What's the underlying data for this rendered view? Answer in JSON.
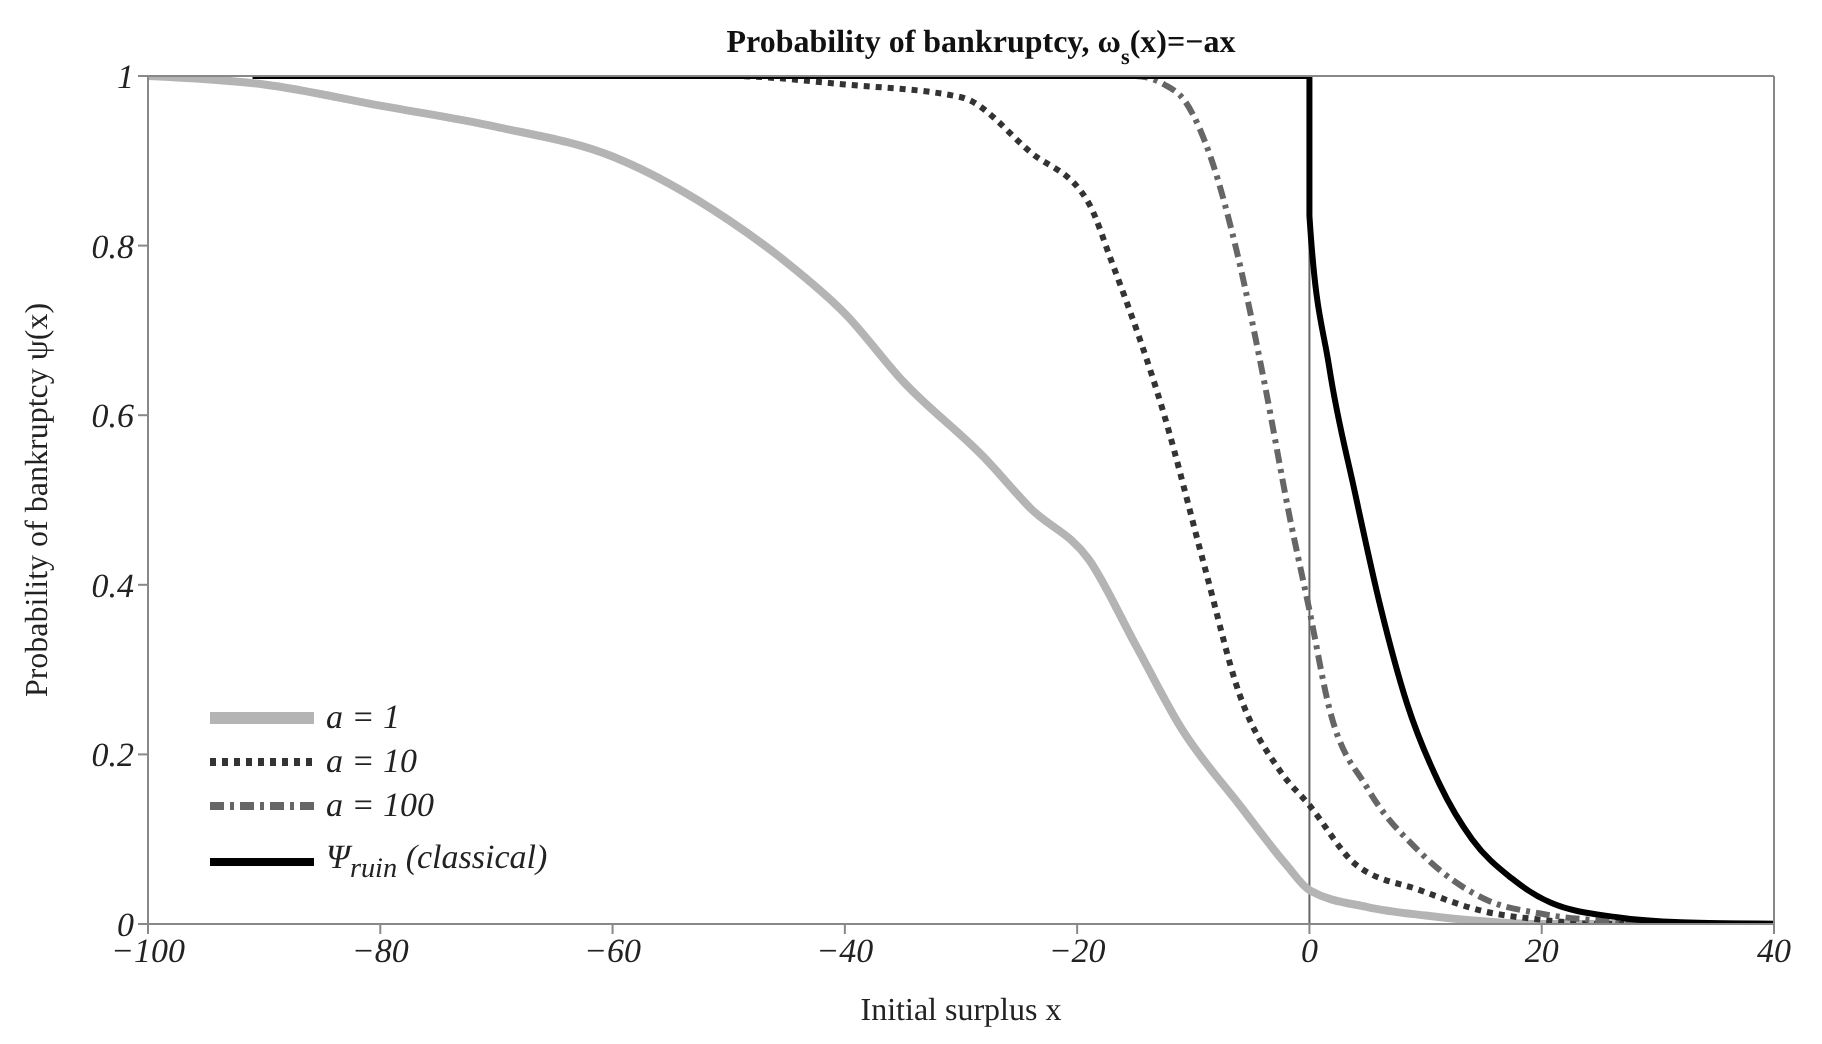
{
  "chart_data": {
    "type": "line",
    "title": "Probability of bankruptcy, ω$_{s}$(x)=−ax",
    "xlabel": "Initial surplus x",
    "ylabel": "Probability of bankruptcy ψ(x)",
    "xlim": [
      -100,
      40
    ],
    "xticks": [
      {
        "value": -100,
        "label": "−100"
      },
      {
        "value": -80,
        "label": "−80"
      },
      {
        "value": -60,
        "label": "−60"
      },
      {
        "value": -40,
        "label": "−40"
      },
      {
        "value": -20,
        "label": "−20"
      },
      0,
      20,
      40
    ],
    "ylim": [
      0,
      1
    ],
    "yticks": [
      0,
      0.2,
      0.4,
      0.6,
      0.8,
      1
    ],
    "legend": "bottom left",
    "marker": "none",
    "ref_lines": [
      {
        "axis": "x",
        "value": 0,
        "color": "#666666"
      }
    ],
    "series": [
      {
        "name": "a = 1",
        "color": "#b4b4b4",
        "line_style": "solid",
        "x": [
          -100,
          -90,
          -80,
          -70,
          -60,
          -50,
          -45,
          -40,
          -35,
          -28,
          -24,
          -19,
          -15,
          -11,
          -6,
          -2,
          0,
          5,
          10,
          20,
          40
        ],
        "values": [
          1,
          0.99,
          0.965,
          0.94,
          0.905,
          0.83,
          0.78,
          0.72,
          0.64,
          0.55,
          0.49,
          0.43,
          0.33,
          0.23,
          0.14,
          0.07,
          0.04,
          0.02,
          0.01,
          0,
          0
        ]
      },
      {
        "name": "a = 10",
        "color": "#333333",
        "line_style": "dotted",
        "x": [
          -90,
          -60,
          -50,
          -40,
          -30,
          -24,
          -19,
          -17,
          -12.5,
          -9,
          -6,
          -2.5,
          0,
          4,
          9.5,
          15,
          20,
          25,
          40
        ],
        "values": [
          1,
          1,
          1,
          0.99,
          0.975,
          0.91,
          0.85,
          0.78,
          0.6,
          0.42,
          0.27,
          0.18,
          0.14,
          0.07,
          0.04,
          0.015,
          0.005,
          0,
          0
        ]
      },
      {
        "name": "a = 100",
        "color": "#666666",
        "line_style": "dashed",
        "x": [
          -90,
          -40,
          -20,
          -15,
          -12.5,
          -10.7,
          -8.4,
          -6.2,
          -3.9,
          -1.7,
          0,
          1.7,
          5,
          9.5,
          15,
          20,
          25,
          30,
          40
        ],
        "values": [
          1,
          1,
          1,
          1,
          0.99,
          0.97,
          0.9,
          0.79,
          0.64,
          0.48,
          0.37,
          0.255,
          0.16,
          0.085,
          0.03,
          0.012,
          0.004,
          0,
          0
        ]
      },
      {
        "name": "Ψ$_{ruin}$ (classical)",
        "color": "#000000",
        "line_style": "solid",
        "x": [
          -91,
          0,
          0,
          1.7,
          3.9,
          6.1,
          8.4,
          11.2,
          14,
          17.4,
          20.8,
          26.5,
          32,
          40
        ],
        "values": [
          1,
          1,
          0.835,
          0.657,
          0.51,
          0.375,
          0.26,
          0.165,
          0.1,
          0.054,
          0.025,
          0.008,
          0.002,
          0
        ]
      }
    ]
  }
}
